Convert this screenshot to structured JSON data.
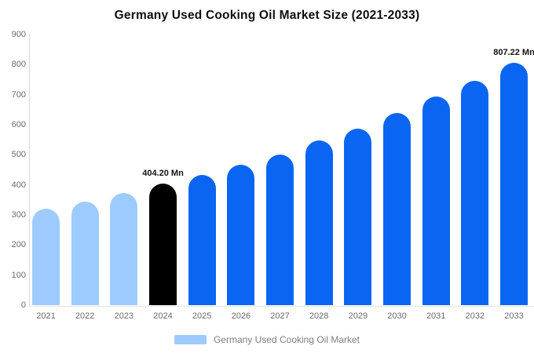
{
  "title": "Germany Used Cooking Oil Market Size (2021-2033)",
  "legend": {
    "label": "Germany Used Cooking Oil Market",
    "swatch_color": "#9ecbff"
  },
  "colors": {
    "historical_bar": "#9ecbff",
    "highlight_bar": "#000000",
    "forecast_bar": "#0a66f2",
    "axis_line": "#d9d9d9",
    "tick_text": "#6b6b6b",
    "data_label_text": "#141414",
    "background": "#ffffff"
  },
  "chart_data": {
    "type": "bar",
    "title": "Germany Used Cooking Oil Market Size (2021-2033)",
    "xlabel": "",
    "ylabel": "",
    "categories": [
      "2021",
      "2022",
      "2023",
      "2024",
      "2025",
      "2026",
      "2027",
      "2028",
      "2029",
      "2030",
      "2031",
      "2032",
      "2033"
    ],
    "values": [
      322,
      345,
      374,
      404.2,
      434,
      467,
      502,
      548,
      588,
      640,
      694,
      747,
      807.22
    ],
    "unit": "Mn",
    "bar_roles": [
      "historical",
      "historical",
      "historical",
      "highlight",
      "forecast",
      "forecast",
      "forecast",
      "forecast",
      "forecast",
      "forecast",
      "forecast",
      "forecast",
      "forecast"
    ],
    "annotations": [
      {
        "category": "2024",
        "text": "404.20 Mn"
      },
      {
        "category": "2033",
        "text": "807.22 Mn"
      }
    ],
    "ylim": [
      0,
      900
    ],
    "yticks": [
      0,
      100,
      200,
      300,
      400,
      500,
      600,
      700,
      800,
      900
    ],
    "grid": false,
    "legend_position": "bottom",
    "legend_entries": [
      "Germany Used Cooking Oil Market"
    ]
  }
}
